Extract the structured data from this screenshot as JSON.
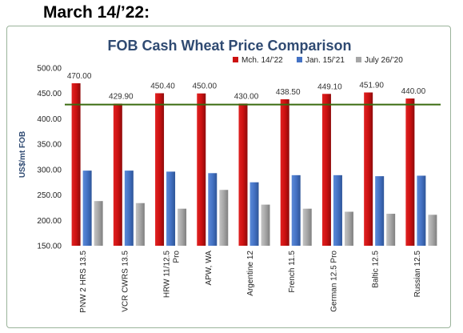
{
  "page": {
    "heading": "March 14/’22:"
  },
  "chart_data": {
    "type": "bar",
    "title": "FOB Cash Wheat Price Comparison",
    "ylabel": "US$/mt FOB",
    "xlabel": "",
    "ylim": [
      150,
      500
    ],
    "yticks": [
      "150.00",
      "200.00",
      "250.00",
      "300.00",
      "350.00",
      "400.00",
      "450.00",
      "500.00"
    ],
    "ytick_values": [
      150,
      200,
      250,
      300,
      350,
      400,
      450,
      500
    ],
    "grid": false,
    "legend_position": "top-right",
    "categories": [
      [
        "PNW 2 HRS 13.5"
      ],
      [
        "VCR CWRS 13.5"
      ],
      [
        "HRW 11/12.5",
        "Pro"
      ],
      [
        "APW, WA"
      ],
      [
        "Argentine 12"
      ],
      [
        "French 11.5"
      ],
      [
        "German 12.5 Pro"
      ],
      [
        "Baltic 12.5"
      ],
      [
        "Russian 12.5"
      ]
    ],
    "series": [
      {
        "name": "Mch. 14/’22",
        "color": "#cc1111",
        "values": [
          470.0,
          429.9,
          450.4,
          450.0,
          430.0,
          438.5,
          449.1,
          451.9,
          440.0
        ],
        "labels": [
          "470.00",
          "429.90",
          "450.40",
          "450.00",
          "430.00",
          "438.50",
          "449.10",
          "451.90",
          "440.00"
        ]
      },
      {
        "name": "Jan. 15/’21",
        "color": "#4472c4",
        "values": [
          298,
          298,
          296,
          293,
          275,
          289,
          289,
          287,
          288
        ]
      },
      {
        "name": "July 26/’20",
        "color": "#a6a6a6",
        "values": [
          238,
          234,
          223,
          260,
          231,
          223,
          217,
          213,
          211
        ]
      }
    ],
    "reference_line": {
      "value": 428,
      "color": "#3a6b10"
    }
  }
}
